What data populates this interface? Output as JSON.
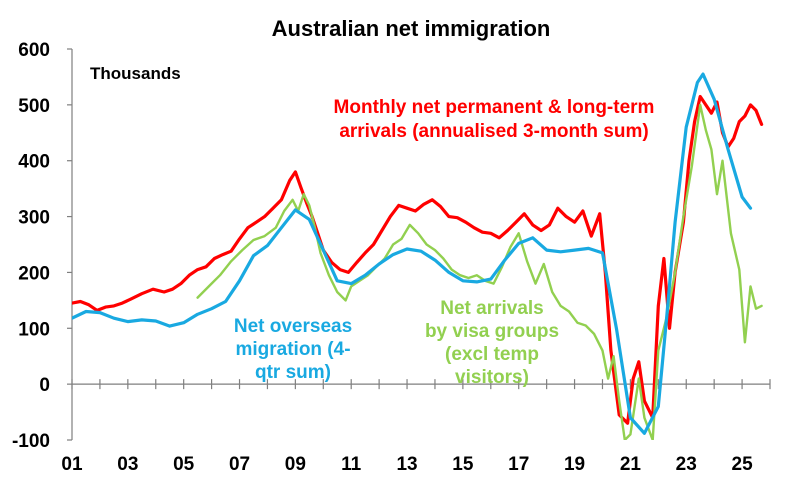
{
  "chart_data": {
    "type": "line",
    "title": "Australian net immigration",
    "unit_label": "Thousands",
    "xlabel": "",
    "ylabel": "",
    "ylim": [
      -100,
      600
    ],
    "xlim": [
      2001.0,
      2026.0
    ],
    "yticks": [
      -100,
      0,
      100,
      200,
      300,
      400,
      500,
      600
    ],
    "ytick_labels": [
      "-100",
      "0",
      "100",
      "200",
      "300",
      "400",
      "500",
      "600"
    ],
    "xticks": [
      2001,
      2003,
      2005,
      2007,
      2009,
      2011,
      2013,
      2015,
      2017,
      2019,
      2021,
      2023,
      2025
    ],
    "xtick_labels": [
      "01",
      "03",
      "05",
      "07",
      "09",
      "11",
      "13",
      "15",
      "17",
      "19",
      "21",
      "23",
      "25"
    ],
    "grid": false,
    "legend": "inline annotations",
    "series": [
      {
        "name": "Monthly net permanent & long-term arrivals (annualised 3-month sum)",
        "color": "#ff0000",
        "points": [
          [
            2001.0,
            145
          ],
          [
            2001.3,
            148
          ],
          [
            2001.6,
            142
          ],
          [
            2001.9,
            132
          ],
          [
            2002.2,
            138
          ],
          [
            2002.5,
            140
          ],
          [
            2002.8,
            145
          ],
          [
            2003.1,
            152
          ],
          [
            2003.5,
            162
          ],
          [
            2003.9,
            170
          ],
          [
            2004.3,
            165
          ],
          [
            2004.6,
            170
          ],
          [
            2004.9,
            180
          ],
          [
            2005.2,
            195
          ],
          [
            2005.5,
            205
          ],
          [
            2005.8,
            210
          ],
          [
            2006.1,
            225
          ],
          [
            2006.4,
            232
          ],
          [
            2006.7,
            238
          ],
          [
            2007.0,
            260
          ],
          [
            2007.3,
            280
          ],
          [
            2007.6,
            290
          ],
          [
            2007.9,
            300
          ],
          [
            2008.2,
            315
          ],
          [
            2008.5,
            330
          ],
          [
            2008.8,
            365
          ],
          [
            2009.0,
            380
          ],
          [
            2009.2,
            352
          ],
          [
            2009.4,
            325
          ],
          [
            2009.6,
            300
          ],
          [
            2009.8,
            270
          ],
          [
            2010.0,
            240
          ],
          [
            2010.3,
            218
          ],
          [
            2010.6,
            205
          ],
          [
            2010.9,
            200
          ],
          [
            2011.2,
            218
          ],
          [
            2011.5,
            235
          ],
          [
            2011.8,
            250
          ],
          [
            2012.1,
            275
          ],
          [
            2012.4,
            300
          ],
          [
            2012.7,
            320
          ],
          [
            2013.0,
            315
          ],
          [
            2013.3,
            310
          ],
          [
            2013.6,
            322
          ],
          [
            2013.9,
            330
          ],
          [
            2014.2,
            318
          ],
          [
            2014.5,
            300
          ],
          [
            2014.8,
            298
          ],
          [
            2015.1,
            290
          ],
          [
            2015.4,
            280
          ],
          [
            2015.7,
            272
          ],
          [
            2016.0,
            270
          ],
          [
            2016.3,
            262
          ],
          [
            2016.6,
            275
          ],
          [
            2016.9,
            290
          ],
          [
            2017.2,
            305
          ],
          [
            2017.5,
            285
          ],
          [
            2017.8,
            275
          ],
          [
            2018.1,
            285
          ],
          [
            2018.4,
            315
          ],
          [
            2018.7,
            300
          ],
          [
            2019.0,
            290
          ],
          [
            2019.3,
            310
          ],
          [
            2019.6,
            265
          ],
          [
            2019.9,
            305
          ],
          [
            2020.1,
            200
          ],
          [
            2020.3,
            60
          ],
          [
            2020.6,
            -55
          ],
          [
            2020.9,
            -70
          ],
          [
            2021.1,
            10
          ],
          [
            2021.3,
            40
          ],
          [
            2021.5,
            -30
          ],
          [
            2021.8,
            -60
          ],
          [
            2022.0,
            140
          ],
          [
            2022.2,
            225
          ],
          [
            2022.4,
            100
          ],
          [
            2022.6,
            200
          ],
          [
            2022.9,
            290
          ],
          [
            2023.1,
            400
          ],
          [
            2023.3,
            470
          ],
          [
            2023.5,
            515
          ],
          [
            2023.7,
            500
          ],
          [
            2023.9,
            485
          ],
          [
            2024.1,
            505
          ],
          [
            2024.3,
            450
          ],
          [
            2024.5,
            425
          ],
          [
            2024.7,
            440
          ],
          [
            2024.9,
            470
          ],
          [
            2025.1,
            480
          ],
          [
            2025.3,
            500
          ],
          [
            2025.5,
            490
          ],
          [
            2025.7,
            465
          ]
        ]
      },
      {
        "name": "Net overseas migration (4-qtr sum)",
        "color": "#19a9e1",
        "points": [
          [
            2001.0,
            118
          ],
          [
            2001.5,
            130
          ],
          [
            2002.0,
            128
          ],
          [
            2002.5,
            118
          ],
          [
            2003.0,
            112
          ],
          [
            2003.5,
            115
          ],
          [
            2004.0,
            113
          ],
          [
            2004.5,
            104
          ],
          [
            2005.0,
            110
          ],
          [
            2005.5,
            125
          ],
          [
            2006.0,
            135
          ],
          [
            2006.5,
            148
          ],
          [
            2007.0,
            185
          ],
          [
            2007.5,
            230
          ],
          [
            2008.0,
            248
          ],
          [
            2008.5,
            280
          ],
          [
            2009.0,
            312
          ],
          [
            2009.5,
            295
          ],
          [
            2010.0,
            240
          ],
          [
            2010.5,
            185
          ],
          [
            2011.0,
            180
          ],
          [
            2011.5,
            195
          ],
          [
            2012.0,
            215
          ],
          [
            2012.5,
            232
          ],
          [
            2013.0,
            242
          ],
          [
            2013.5,
            238
          ],
          [
            2014.0,
            222
          ],
          [
            2014.5,
            200
          ],
          [
            2015.0,
            185
          ],
          [
            2015.5,
            183
          ],
          [
            2016.0,
            188
          ],
          [
            2016.5,
            222
          ],
          [
            2017.0,
            252
          ],
          [
            2017.5,
            262
          ],
          [
            2018.0,
            240
          ],
          [
            2018.5,
            237
          ],
          [
            2019.0,
            240
          ],
          [
            2019.5,
            243
          ],
          [
            2020.0,
            235
          ],
          [
            2020.5,
            100
          ],
          [
            2021.0,
            -60
          ],
          [
            2021.5,
            -88
          ],
          [
            2022.0,
            -40
          ],
          [
            2022.3,
            120
          ],
          [
            2022.6,
            290
          ],
          [
            2023.0,
            460
          ],
          [
            2023.4,
            540
          ],
          [
            2023.6,
            555
          ],
          [
            2024.0,
            510
          ],
          [
            2024.5,
            420
          ],
          [
            2025.0,
            335
          ],
          [
            2025.3,
            315
          ]
        ]
      },
      {
        "name": "Net arrivals by visa groups (excl temp visitors)",
        "color": "#92d050",
        "points": [
          [
            2005.5,
            155
          ],
          [
            2005.9,
            175
          ],
          [
            2006.3,
            195
          ],
          [
            2006.7,
            220
          ],
          [
            2007.1,
            240
          ],
          [
            2007.5,
            258
          ],
          [
            2007.9,
            265
          ],
          [
            2008.3,
            280
          ],
          [
            2008.6,
            310
          ],
          [
            2008.9,
            330
          ],
          [
            2009.1,
            310
          ],
          [
            2009.3,
            340
          ],
          [
            2009.5,
            320
          ],
          [
            2009.7,
            280
          ],
          [
            2009.9,
            235
          ],
          [
            2010.2,
            195
          ],
          [
            2010.5,
            165
          ],
          [
            2010.8,
            150
          ],
          [
            2011.0,
            175
          ],
          [
            2011.3,
            185
          ],
          [
            2011.6,
            195
          ],
          [
            2011.9,
            210
          ],
          [
            2012.2,
            225
          ],
          [
            2012.5,
            250
          ],
          [
            2012.8,
            260
          ],
          [
            2013.1,
            285
          ],
          [
            2013.4,
            270
          ],
          [
            2013.7,
            250
          ],
          [
            2014.0,
            240
          ],
          [
            2014.3,
            225
          ],
          [
            2014.6,
            205
          ],
          [
            2014.9,
            195
          ],
          [
            2015.2,
            190
          ],
          [
            2015.5,
            195
          ],
          [
            2015.8,
            185
          ],
          [
            2016.1,
            180
          ],
          [
            2016.4,
            210
          ],
          [
            2016.7,
            245
          ],
          [
            2017.0,
            270
          ],
          [
            2017.3,
            220
          ],
          [
            2017.6,
            180
          ],
          [
            2017.9,
            215
          ],
          [
            2018.2,
            165
          ],
          [
            2018.5,
            140
          ],
          [
            2018.8,
            130
          ],
          [
            2019.1,
            110
          ],
          [
            2019.4,
            105
          ],
          [
            2019.7,
            90
          ],
          [
            2020.0,
            60
          ],
          [
            2020.2,
            10
          ],
          [
            2020.4,
            50
          ],
          [
            2020.6,
            -30
          ],
          [
            2020.8,
            -100
          ],
          [
            2021.0,
            -90
          ],
          [
            2021.3,
            10
          ],
          [
            2021.5,
            -60
          ],
          [
            2021.8,
            -100
          ],
          [
            2022.0,
            60
          ],
          [
            2022.3,
            120
          ],
          [
            2022.6,
            200
          ],
          [
            2022.9,
            300
          ],
          [
            2023.2,
            390
          ],
          [
            2023.5,
            500
          ],
          [
            2023.7,
            455
          ],
          [
            2023.9,
            420
          ],
          [
            2024.1,
            340
          ],
          [
            2024.3,
            400
          ],
          [
            2024.6,
            270
          ],
          [
            2024.9,
            205
          ],
          [
            2025.1,
            75
          ],
          [
            2025.3,
            175
          ],
          [
            2025.5,
            135
          ],
          [
            2025.7,
            140
          ]
        ]
      }
    ],
    "annotations": [
      {
        "series": 0,
        "lines": [
          "Monthly net permanent & long-term",
          "arrivals (annualised 3-month sum)"
        ]
      },
      {
        "series": 1,
        "lines": [
          "Net overseas",
          "migration (4-",
          "qtr sum)"
        ]
      },
      {
        "series": 2,
        "lines": [
          "Net arrivals",
          "by visa groups",
          "(excl temp",
          "visitors)"
        ]
      }
    ]
  }
}
